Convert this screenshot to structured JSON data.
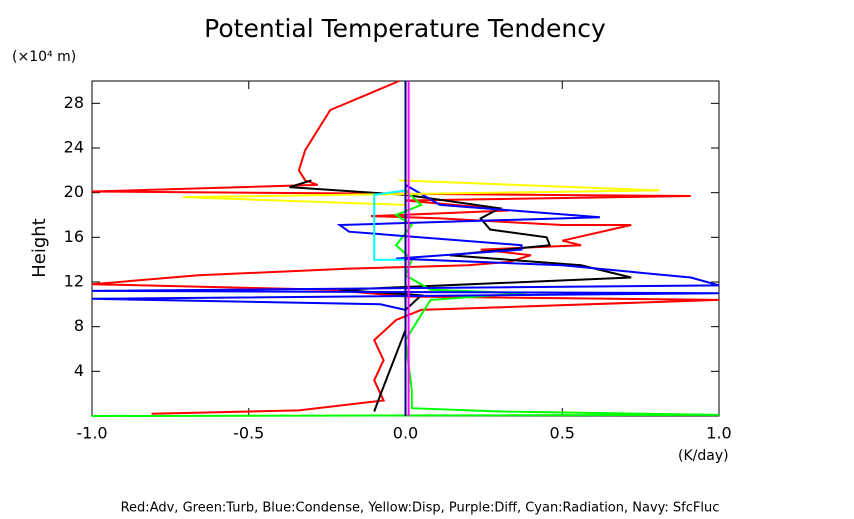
{
  "chart_data": {
    "type": "line",
    "title": "Potential Temperature Tendency",
    "y_unit": "(×10⁴ m)",
    "x_unit": "(K/day)",
    "y_label": "Height",
    "legend_text": "Red:Adv, Green:Turb, Blue:Condense, Yellow:Disp, Purple:Diff, Cyan:Radiation, Navy: SfcFluc",
    "xlim": [
      -1.0,
      1.0
    ],
    "xticks": [
      {
        "value": -1,
        "label": "-1.0"
      },
      -0.5,
      {
        "value": 0,
        "label": "0.0"
      },
      0.5,
      {
        "value": 1,
        "label": "1.0"
      }
    ],
    "ylim": [
      0,
      30
    ],
    "yticks": [
      4,
      8,
      12,
      16,
      20,
      24,
      28
    ],
    "series": [
      {
        "color": "#ff0000",
        "x": [
          -0.02,
          -0.24,
          -0.32,
          -0.34,
          -0.32,
          -0.28,
          -1.0,
          0.91,
          0,
          0.24,
          0.33,
          -0.11,
          0.11,
          0.5,
          0.72,
          0.5,
          0.56,
          0.24,
          0.4,
          0.33,
          0.2,
          -0.18,
          -0.66,
          -1.0,
          -0.24,
          0,
          1.0,
          0.05,
          -0.03,
          -0.1,
          -0.07,
          -0.1,
          -0.07,
          -0.34,
          -0.81
        ],
        "values": [
          30,
          27.4,
          23.8,
          22,
          21.1,
          20.7,
          20.1,
          19.7,
          19.3,
          18.7,
          18.4,
          17.9,
          17.7,
          17.1,
          17.1,
          15.7,
          15.3,
          14.9,
          14.4,
          13.8,
          13.5,
          13.2,
          12.6,
          11.8,
          11.3,
          10.7,
          10.4,
          9.5,
          8.6,
          6.8,
          5.0,
          3.2,
          1.4,
          0.5,
          0.2
        ]
      },
      {
        "color": "#000000",
        "x": [
          -0.3,
          -0.37,
          0,
          0.3,
          0.24,
          0.27,
          0.45,
          0.46,
          0.14,
          0.56,
          0.72,
          -0.21,
          0.05,
          0,
          0,
          -0.08,
          -0.1
        ],
        "values": [
          21.1,
          20.5,
          19.8,
          18.6,
          17.7,
          16.7,
          16.0,
          15.3,
          14.4,
          13.5,
          12.4,
          11.3,
          10.8,
          9.5,
          7.7,
          1.9,
          0.4
        ]
      },
      {
        "color": "#00ff00",
        "x": [
          0,
          0.05,
          -0.03,
          0.02,
          -0.03,
          0.02,
          0,
          0.08,
          0.38,
          0.08,
          0.06,
          0,
          0.02,
          0.02,
          0.3,
          1.0,
          -1.0
        ],
        "values": [
          20.2,
          18.9,
          18,
          17.1,
          15.3,
          14,
          12.6,
          11.3,
          11.0,
          10.4,
          9.5,
          6.8,
          2.3,
          0.7,
          0.4,
          0.1,
          0
        ]
      },
      {
        "color": "#0000ff",
        "x": [
          0,
          0.11,
          0.62,
          -0.21,
          -0.18,
          0.37,
          0.37,
          -0.03,
          0.5,
          0.91,
          1.0,
          -1.0,
          1.0,
          -1.0,
          -0.08,
          0,
          0
        ],
        "values": [
          20.7,
          18.9,
          17.8,
          17.1,
          16.5,
          15.3,
          14.9,
          14.1,
          13.5,
          12.4,
          11.7,
          11.2,
          11.0,
          10.5,
          10.0,
          9.5,
          0
        ]
      },
      {
        "color": "#ffff00",
        "x": [
          -0.02,
          0.81,
          -0.71,
          0
        ],
        "values": [
          21.1,
          20.2,
          19.6,
          18.9
        ]
      },
      {
        "color": "#00ffff",
        "x": [
          0,
          -0.1,
          -0.1,
          0,
          0
        ],
        "values": [
          20.2,
          19.8,
          14.0,
          14.0,
          0
        ]
      },
      {
        "color": "#ff00ff",
        "x": [
          0.01,
          0.01
        ],
        "values": [
          30,
          0
        ]
      },
      {
        "color": "#000080",
        "x": [
          0,
          0
        ],
        "values": [
          30,
          0
        ]
      }
    ]
  }
}
